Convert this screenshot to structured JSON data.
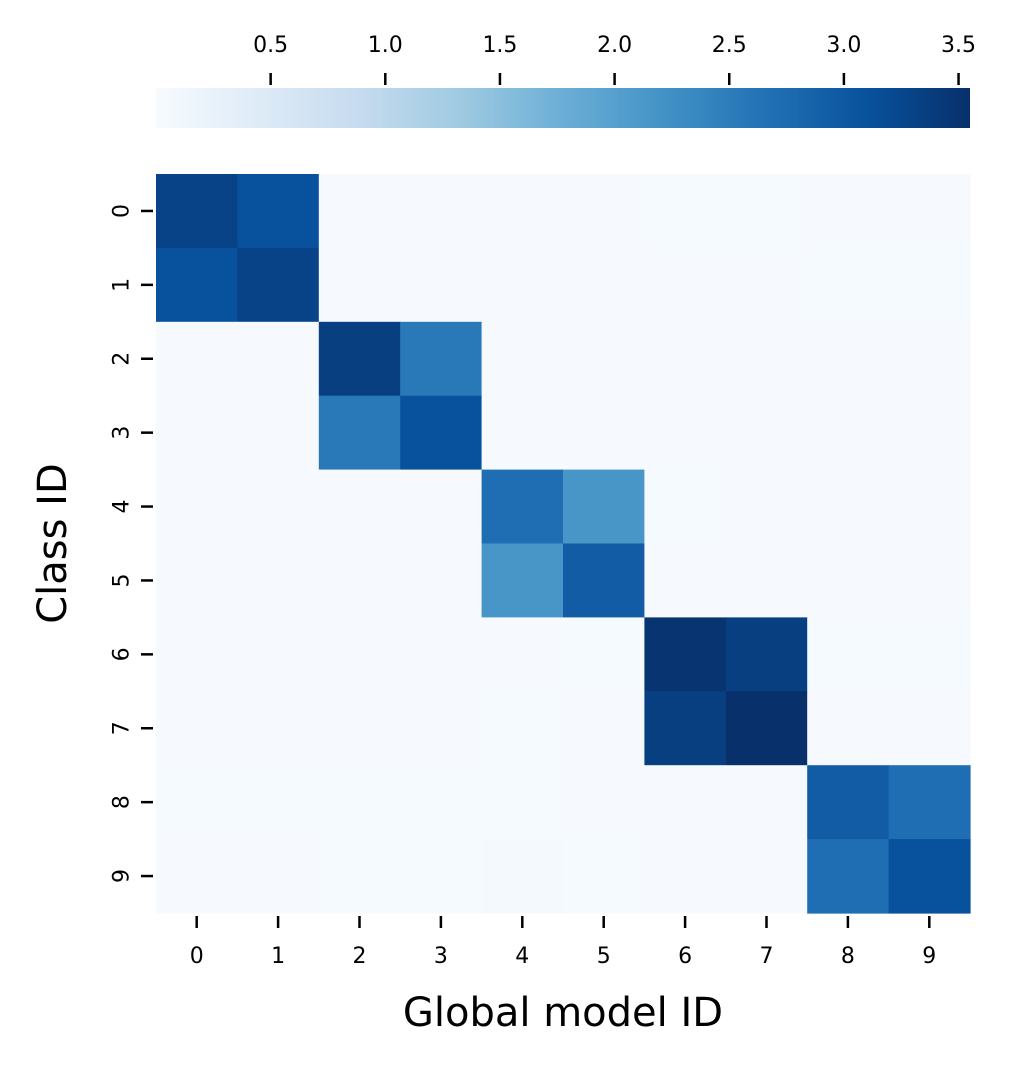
{
  "chart_data": {
    "type": "heatmap",
    "title": "",
    "xlabel": "Global model ID",
    "ylabel": "Class ID",
    "x_categories": [
      "0",
      "1",
      "2",
      "3",
      "4",
      "5",
      "6",
      "7",
      "8",
      "9"
    ],
    "y_categories": [
      "0",
      "1",
      "2",
      "3",
      "4",
      "5",
      "6",
      "7",
      "8",
      "9"
    ],
    "values": [
      [
        3.3,
        3.1,
        0.02,
        0.02,
        0.02,
        0.02,
        0.03,
        0.03,
        0.02,
        0.02
      ],
      [
        3.1,
        3.3,
        0.02,
        0.02,
        0.02,
        0.02,
        0.02,
        0.02,
        0.03,
        0.03
      ],
      [
        0.02,
        0.02,
        3.35,
        2.55,
        0.02,
        0.02,
        0.02,
        0.02,
        0.02,
        0.02
      ],
      [
        0.02,
        0.02,
        2.55,
        3.1,
        0.02,
        0.02,
        0.02,
        0.02,
        0.02,
        0.02
      ],
      [
        0.02,
        0.02,
        0.02,
        0.02,
        2.7,
        2.15,
        0.03,
        0.02,
        0.02,
        0.02
      ],
      [
        0.02,
        0.02,
        0.02,
        0.02,
        2.15,
        2.95,
        0.02,
        0.02,
        0.02,
        0.02
      ],
      [
        0.02,
        0.02,
        0.02,
        0.02,
        0.02,
        0.04,
        3.5,
        3.35,
        0.03,
        0.04
      ],
      [
        0.02,
        0.02,
        0.02,
        0.02,
        0.04,
        0.02,
        3.35,
        3.55,
        0.02,
        0.02
      ],
      [
        0.03,
        0.03,
        0.03,
        0.03,
        0.04,
        0.02,
        0.02,
        0.02,
        2.95,
        2.7
      ],
      [
        0.02,
        0.02,
        0.03,
        0.03,
        0.05,
        0.03,
        0.02,
        0.02,
        2.7,
        3.1
      ]
    ],
    "colorbar": {
      "orientation": "horizontal",
      "location": "top",
      "min": 0.0,
      "max": 3.55,
      "ticks": [
        0.5,
        1.0,
        1.5,
        2.0,
        2.5,
        3.0,
        3.5
      ],
      "tick_labels": [
        "0.5",
        "1.0",
        "1.5",
        "2.0",
        "2.5",
        "3.0",
        "3.5"
      ]
    },
    "colormap": "Blues",
    "colormap_stops": [
      "#f7fbff",
      "#deebf7",
      "#c6dbef",
      "#9ecae1",
      "#6baed6",
      "#4292c6",
      "#2171b5",
      "#08519c",
      "#08306b"
    ],
    "grid": false
  }
}
